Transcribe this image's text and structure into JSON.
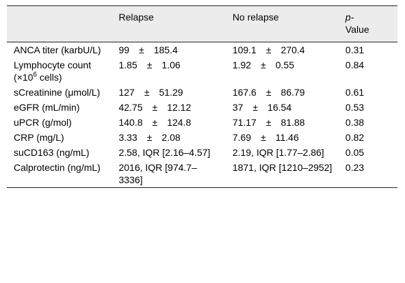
{
  "header": {
    "col0": "",
    "col1": "Relapse",
    "col2": "No relapse",
    "col3_italic": "p-",
    "col3_rest": "Value"
  },
  "pm_sign": "±",
  "rows": [
    {
      "label": "ANCA titer (karbU/L)",
      "relapse_mean": "99",
      "relapse_sd": "185.4",
      "norelapse_mean": "109.1",
      "norelapse_sd": "270.4",
      "p": "0.31"
    },
    {
      "label_pre": "Lymphocyte count (×10",
      "label_sup": "6",
      "label_post": " cells)",
      "relapse_mean": "1.85",
      "relapse_sd": "1.06",
      "norelapse_mean": "1.92",
      "norelapse_sd": "0.55",
      "p": "0.84"
    },
    {
      "label": "sCreatinine (μmol/L)",
      "relapse_mean": "127",
      "relapse_sd": "51.29",
      "norelapse_mean": "167.6",
      "norelapse_sd": "86.79",
      "p": "0.61"
    },
    {
      "label": "eGFR (mL/min)",
      "relapse_mean": "42.75",
      "relapse_sd": "12.12",
      "norelapse_mean": "37",
      "norelapse_sd": "16.54",
      "p": "0.53"
    },
    {
      "label": "uPCR (g/mol)",
      "relapse_mean": "140.8",
      "relapse_sd": "124.8",
      "norelapse_mean": "71.17",
      "norelapse_sd": "81.88",
      "p": "0.38"
    },
    {
      "label": "CRP (mg/L)",
      "relapse_mean": "3.33",
      "relapse_sd": "2.08",
      "norelapse_mean": "7.69",
      "norelapse_sd": "11.46",
      "p": "0.82"
    },
    {
      "label": "suCD163 (ng/mL)",
      "relapse": "2.58, IQR [2.16–4.57]",
      "norelapse": "2.19, IQR [1.77–2.86]",
      "p": "0.05"
    },
    {
      "label": "Calprotectin (ng/mL)",
      "relapse": "2016, IQR [974.7–3336]",
      "norelapse": "1871, IQR [1210–2952]",
      "p": "0.23"
    }
  ]
}
